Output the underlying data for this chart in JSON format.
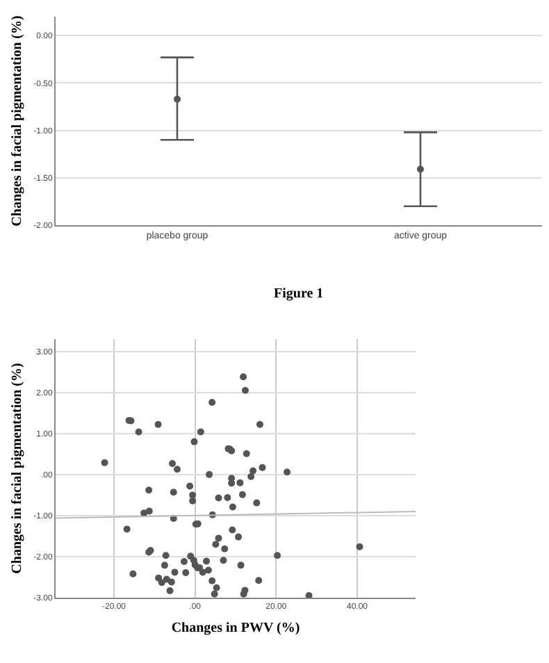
{
  "chart_data": [
    {
      "type": "scatter",
      "categories": [
        "placebo group",
        "active group"
      ],
      "ylabel": "Changes in facial pigmentation (%)",
      "series": [
        {
          "color": "#555555",
          "values": [
            -0.67,
            -1.41
          ],
          "errors": [
            [
              -1.1,
              -0.23
            ],
            [
              -1.8,
              -1.02
            ]
          ]
        }
      ],
      "ylim": [
        -2,
        0.2
      ],
      "yticks": [
        {
          "value": 0,
          "label": "0.00"
        },
        {
          "value": -0.5,
          "label": "-0.50"
        },
        {
          "value": -1,
          "label": "-1.00"
        },
        {
          "value": -1.5,
          "label": "-1.50"
        },
        {
          "value": -2,
          "label": "-2.00"
        }
      ],
      "grid": "y",
      "marker": "circle",
      "annotations": [
        "Figure 1"
      ]
    },
    {
      "type": "scatter",
      "xlabel": "Changes in PWV (%)",
      "ylabel": "Changes in facial pigmentation (%)",
      "series": [
        {
          "color": "#555555",
          "marker": "circle",
          "x": [
            -22.3,
            -16.3,
            -15.8,
            -13.9,
            -9.1,
            1.4,
            -0.2,
            4.2,
            11.9,
            12.4,
            16.0,
            8.2,
            8.6,
            9.0,
            12.7,
            -5.6,
            -4.4,
            3.5,
            9.0,
            9.0,
            11.1,
            13.8,
            14.3,
            16.6,
            22.7,
            -11.4,
            -5.3,
            -1.3,
            -0.6,
            -0.6,
            5.8,
            8.0,
            11.7,
            9.3,
            15.2,
            -12.6,
            -11.3,
            -5.3,
            4.3,
            0.2,
            0.7,
            -16.8,
            9.2,
            5.8,
            10.7,
            5.1,
            7.3,
            -11.4,
            -11.0,
            -7.2,
            -1.1,
            -0.3,
            -2.7,
            2.8,
            7.0,
            20.3,
            40.6,
            -15.3,
            -7.5,
            0.0,
            0.6,
            1.1,
            -5.0,
            -2.3,
            1.9,
            3.3,
            11.3,
            -9.0,
            -8.2,
            -7.0,
            -5.8,
            -6.2,
            4.2,
            5.3,
            4.8,
            12.3,
            12.0,
            15.7,
            28.1
          ],
          "values": [
            0.29,
            1.32,
            1.31,
            1.04,
            1.22,
            1.04,
            0.8,
            1.76,
            2.38,
            2.05,
            1.22,
            0.63,
            0.62,
            0.58,
            0.51,
            0.27,
            0.13,
            0.0,
            -0.09,
            -0.21,
            -0.2,
            -0.05,
            0.09,
            0.17,
            0.06,
            -0.38,
            -0.43,
            -0.28,
            -0.5,
            -0.64,
            -0.57,
            -0.56,
            -0.49,
            -0.79,
            -0.69,
            -0.94,
            -0.89,
            -1.07,
            -0.98,
            -1.21,
            -1.2,
            -1.33,
            -1.35,
            -1.55,
            -1.52,
            -1.7,
            -1.81,
            -1.89,
            -1.85,
            -1.97,
            -1.99,
            -2.09,
            -2.12,
            -2.11,
            -2.09,
            -1.97,
            -1.76,
            -2.42,
            -2.21,
            -2.2,
            -2.27,
            -2.27,
            -2.38,
            -2.39,
            -2.38,
            -2.33,
            -2.21,
            -2.52,
            -2.63,
            -2.55,
            -2.62,
            -2.83,
            -2.59,
            -2.76,
            -2.91,
            -2.82,
            -2.91,
            -2.58,
            -2.95
          ]
        },
        {
          "type": "line",
          "color": "#bbbbbb",
          "marker": "none",
          "x": [
            -34.4,
            54.4
          ],
          "values": [
            -1.06,
            -0.9
          ]
        }
      ],
      "xlim": [
        -34.4,
        54.4
      ],
      "xticks": [
        {
          "value": -20,
          "label": "-20.00"
        },
        {
          "value": 0,
          "label": ".00"
        },
        {
          "value": 20,
          "label": "20.00"
        },
        {
          "value": 40,
          "label": "40.00"
        }
      ],
      "ylim": [
        -3,
        3.3
      ],
      "yticks": [
        {
          "value": 3,
          "label": "3.00"
        },
        {
          "value": 2,
          "label": "2.00"
        },
        {
          "value": 1,
          "label": "1.00"
        },
        {
          "value": 0,
          "label": ".00"
        },
        {
          "value": -1,
          "label": "-1.00"
        },
        {
          "value": -2,
          "label": "-2.00"
        },
        {
          "value": -3,
          "label": "-3.00"
        }
      ],
      "grid": true
    }
  ]
}
